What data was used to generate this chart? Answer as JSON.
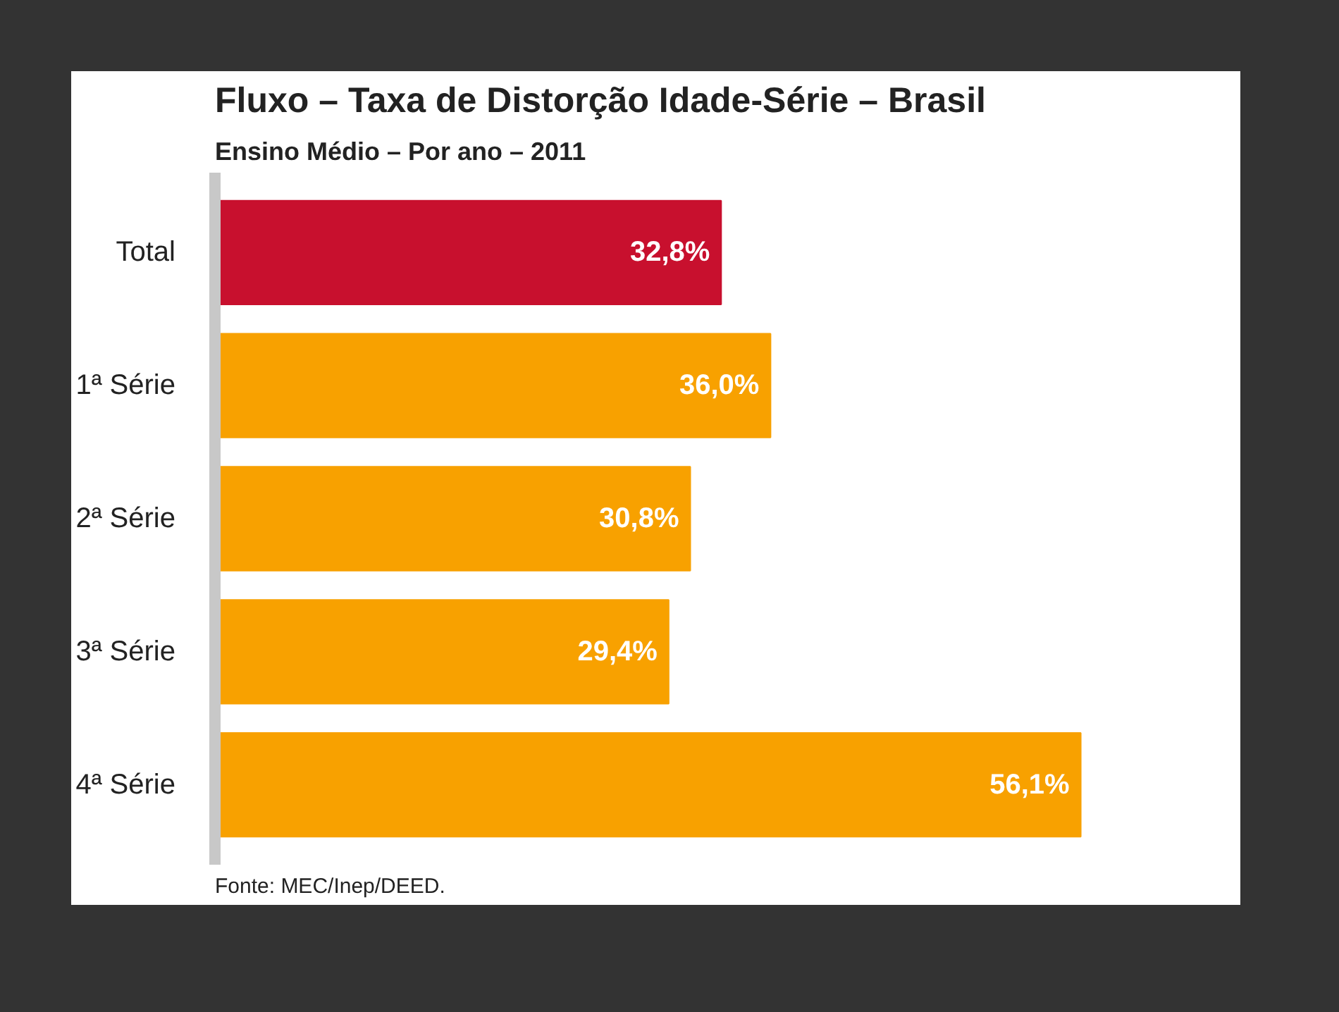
{
  "chart_data": {
    "type": "bar",
    "orientation": "horizontal",
    "title": "Fluxo – Taxa de Distorção Idade-Série – Brasil",
    "subtitle": "Ensino Médio – Por ano – 2011",
    "categories": [
      "Total",
      "1ª Série",
      "2ª Série",
      "3ª Série",
      "4ª Série"
    ],
    "values": [
      32.8,
      36.0,
      30.8,
      29.4,
      56.1
    ],
    "colors": [
      "#c8102e",
      "#f8a100",
      "#f8a100",
      "#f8a100",
      "#f8a100"
    ],
    "value_labels": [
      "32,8%",
      "36,0%",
      "30,8%",
      "29,4%",
      "56,1%"
    ],
    "annotations": [
      "Fonte: MEC/Inep/DEED."
    ],
    "grid": false
  }
}
